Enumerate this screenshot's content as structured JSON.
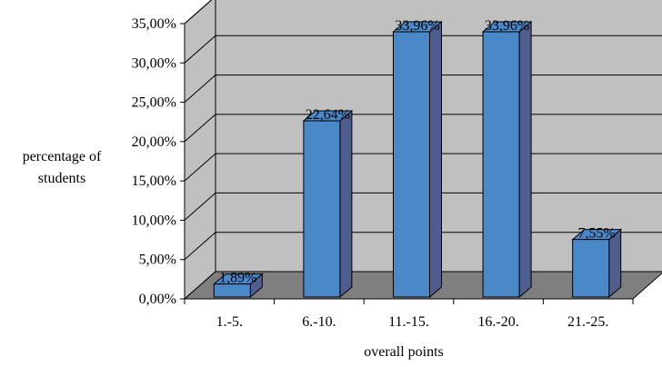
{
  "chart_data": {
    "type": "bar",
    "categories": [
      "1.-5.",
      "6.-10.",
      "11.-15.",
      "16.-20.",
      "21.-25."
    ],
    "values": [
      1.89,
      22.64,
      33.96,
      33.96,
      7.55
    ],
    "value_labels": [
      "1,89%",
      "22,64%",
      "33,96%",
      "33,96%",
      "7,55%"
    ],
    "xlabel": "overall points",
    "ylabel": [
      "percentage of",
      "students"
    ],
    "ylim": [
      0,
      35
    ],
    "yticks": [
      0,
      5,
      10,
      15,
      20,
      25,
      30,
      35
    ],
    "ytick_labels": [
      "0,00%",
      "5,00%",
      "10,00%",
      "15,00%",
      "20,00%",
      "25,00%",
      "30,00%",
      "35,00%"
    ],
    "grid": true,
    "style": "3d-column",
    "colors": {
      "bar_front": "#4a88c8",
      "bar_side": "#4f5e8e",
      "bar_top": "#4a88c8",
      "wall": "#c0c0c0",
      "floor": "#7f7f7f",
      "grid": "#000000"
    }
  }
}
